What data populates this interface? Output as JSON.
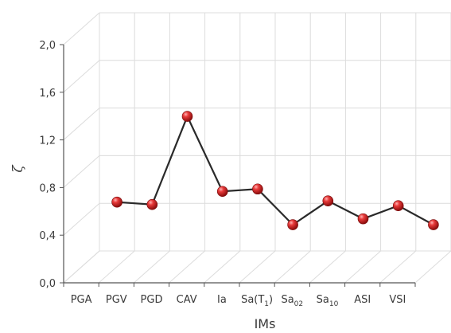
{
  "chart_data": {
    "type": "line",
    "title": "",
    "xlabel": "IMs",
    "ylabel": "ζ",
    "ylim": [
      0,
      2.0
    ],
    "yticks": [
      "0,0",
      "0,4",
      "0,8",
      "1,2",
      "1,6",
      "2,0"
    ],
    "grid": true,
    "categories": [
      {
        "base": "PGA"
      },
      {
        "base": "PGV"
      },
      {
        "base": "PGD"
      },
      {
        "base": "CAV"
      },
      {
        "base": "Ia"
      },
      {
        "base": "Sa(T",
        "sub": "1",
        "tail": ")"
      },
      {
        "base": "Sa",
        "sub": "02"
      },
      {
        "base": "Sa",
        "sub": "10"
      },
      {
        "base": "ASI"
      },
      {
        "base": "VSI"
      }
    ],
    "series": [
      {
        "values": [
          0.41,
          0.39,
          1.13,
          0.5,
          0.52,
          0.22,
          0.42,
          0.27,
          0.38,
          0.22
        ],
        "color": "#cc1f1f",
        "line_color": "#2a2a2a"
      }
    ]
  }
}
